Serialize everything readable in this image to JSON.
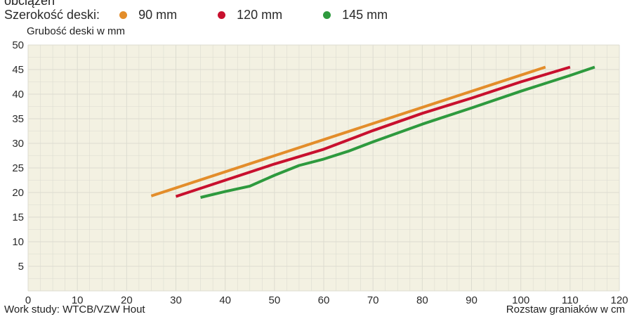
{
  "top_text": "obciążeń",
  "legend": {
    "title": "Szerokość deski:",
    "items": [
      {
        "label": "90 mm",
        "color": "#e38d2a"
      },
      {
        "label": "120 mm",
        "color": "#c8102e"
      },
      {
        "label": "145 mm",
        "color": "#2e9a3e"
      }
    ]
  },
  "footer": {
    "source": "Work study: WTCB/VZW Hout",
    "xlabel": "Rozstaw graniaków w cm"
  },
  "colors": {
    "plot_bg": "#f3f1e2",
    "grid": "#dcdcd0"
  },
  "chart_data": {
    "type": "line",
    "title": "",
    "ylabel": "Grubość deski w mm",
    "xlabel": "Rozstaw graniaków w cm",
    "xlim": [
      0,
      120
    ],
    "ylim": [
      0,
      50
    ],
    "x_ticks": [
      0,
      10,
      20,
      30,
      40,
      50,
      60,
      70,
      80,
      90,
      100,
      110,
      120
    ],
    "y_ticks": [
      5,
      10,
      15,
      20,
      25,
      30,
      35,
      40,
      45,
      50
    ],
    "grid": true,
    "legend_position": "top",
    "series": [
      {
        "name": "90 mm",
        "color": "#e38d2a",
        "points": [
          [
            25,
            19.3
          ],
          [
            105,
            45.5
          ]
        ]
      },
      {
        "name": "120 mm",
        "color": "#c8102e",
        "points": [
          [
            30,
            19.2
          ],
          [
            40,
            22.5
          ],
          [
            50,
            25.8
          ],
          [
            60,
            28.8
          ],
          [
            70,
            32.6
          ],
          [
            80,
            36.1
          ],
          [
            90,
            39.2
          ],
          [
            100,
            42.5
          ],
          [
            110,
            45.5
          ]
        ]
      },
      {
        "name": "145 mm",
        "color": "#2e9a3e",
        "points": [
          [
            35,
            19.0
          ],
          [
            40,
            20.2
          ],
          [
            45,
            21.3
          ],
          [
            50,
            23.5
          ],
          [
            55,
            25.5
          ],
          [
            60,
            26.8
          ],
          [
            65,
            28.4
          ],
          [
            70,
            30.3
          ],
          [
            80,
            33.9
          ],
          [
            90,
            37.2
          ],
          [
            100,
            40.6
          ],
          [
            110,
            43.8
          ],
          [
            115,
            45.5
          ]
        ]
      }
    ]
  }
}
